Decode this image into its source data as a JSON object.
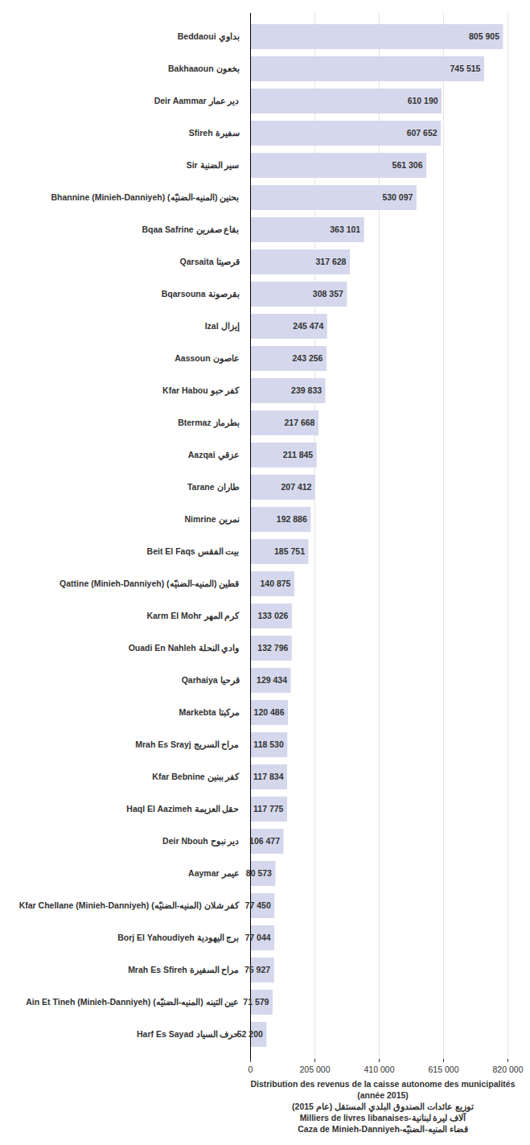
{
  "chart_data": {
    "type": "bar",
    "orientation": "horizontal",
    "x_label": [
      "Distribution des revenus de la caisse autonome des municipalités (année 2015)",
      "توزيع عائدات الصندوق البلدي المستقل (عام 2015)",
      "Milliers de livres libanaises-آلاف ليرة لبنانية",
      "Caza de Minieh-Danniyeh-قضاء المنيه-الضنيّه"
    ],
    "categories": [
      "Beddaoui بداوي",
      "Bakhaaoun بخعون",
      "Deir Aammar دير عمار",
      "Sfireh سفيرة",
      "Sir سير الضنية",
      "Bhannine (Minieh-Danniyeh) بحنين (المنيه-الضنيّه)",
      "Bqaa Safrine بقاع صفرين",
      "Qarsaita قرصيتا",
      "Bqarsouna بقرصونة",
      "Izal إيزال",
      "Aassoun عاصون",
      "Kfar Habou كفر حبو",
      "Btermaz بطرماز",
      "Aazqai عزقي",
      "Tarane طاران",
      "Nimrine نمرين",
      "Beit El Faqs بيت الفقس",
      "Qattine (Minieh-Danniyeh) قطين (المنيه-الضنيّه)",
      "Karm El Mohr كرم المهر",
      "Ouadi En Nahleh وادي النحلة",
      "Qarhaiya قرحيا",
      "Markebta مركبتا",
      "Mrah Es Srayj مراح السريج",
      "Kfar Bebnine كفر ببنين",
      "Haql El Aazimeh حقل العزيمة",
      "Deir Nbouh دير نبوح",
      "Aaymar عيمر",
      "Kfar Chellane (Minieh-Danniyeh) كفر شلان (المنيه-الضنيّه)",
      "Borj El Yahoudiyeh برج اليهودية",
      "Mrah Es Sfireh مراح السفيرة",
      "Ain Et Tineh (Minieh-Danniyeh) عين التينه (المنيه-الضنيّه)",
      "Harf Es Sayad حرف السياد"
    ],
    "values": [
      805905,
      745515,
      610190,
      607652,
      561306,
      530097,
      363101,
      317628,
      308357,
      245474,
      243256,
      239833,
      217668,
      211845,
      207412,
      192886,
      185751,
      140875,
      133026,
      132796,
      129434,
      120486,
      118530,
      117834,
      117775,
      106477,
      80573,
      77450,
      77044,
      75927,
      71579,
      52200
    ],
    "value_labels": [
      "805 905",
      "745 515",
      "610 190",
      "607 652",
      "561 306",
      "530 097",
      "363 101",
      "317 628",
      "308 357",
      "245 474",
      "243 256",
      "239 833",
      "217 668",
      "211 845",
      "207 412",
      "192 886",
      "185 751",
      "140 875",
      "133 026",
      "132 796",
      "129 434",
      "120 486",
      "118 530",
      "117 834",
      "117 775",
      "106 477",
      "80 573",
      "77 450",
      "77 044",
      "75 927",
      "71 579",
      "52 200"
    ],
    "data_labels": true,
    "color": "#d5d8ec",
    "xlim": [
      0,
      820000
    ],
    "xticks": [
      0,
      {
        "value": 205000,
        "label": "205 000"
      },
      {
        "value": 410000,
        "label": "410 000"
      },
      {
        "value": 615000,
        "label": "615 000"
      },
      {
        "value": 820000,
        "label": "820 000"
      }
    ],
    "grid": true
  }
}
